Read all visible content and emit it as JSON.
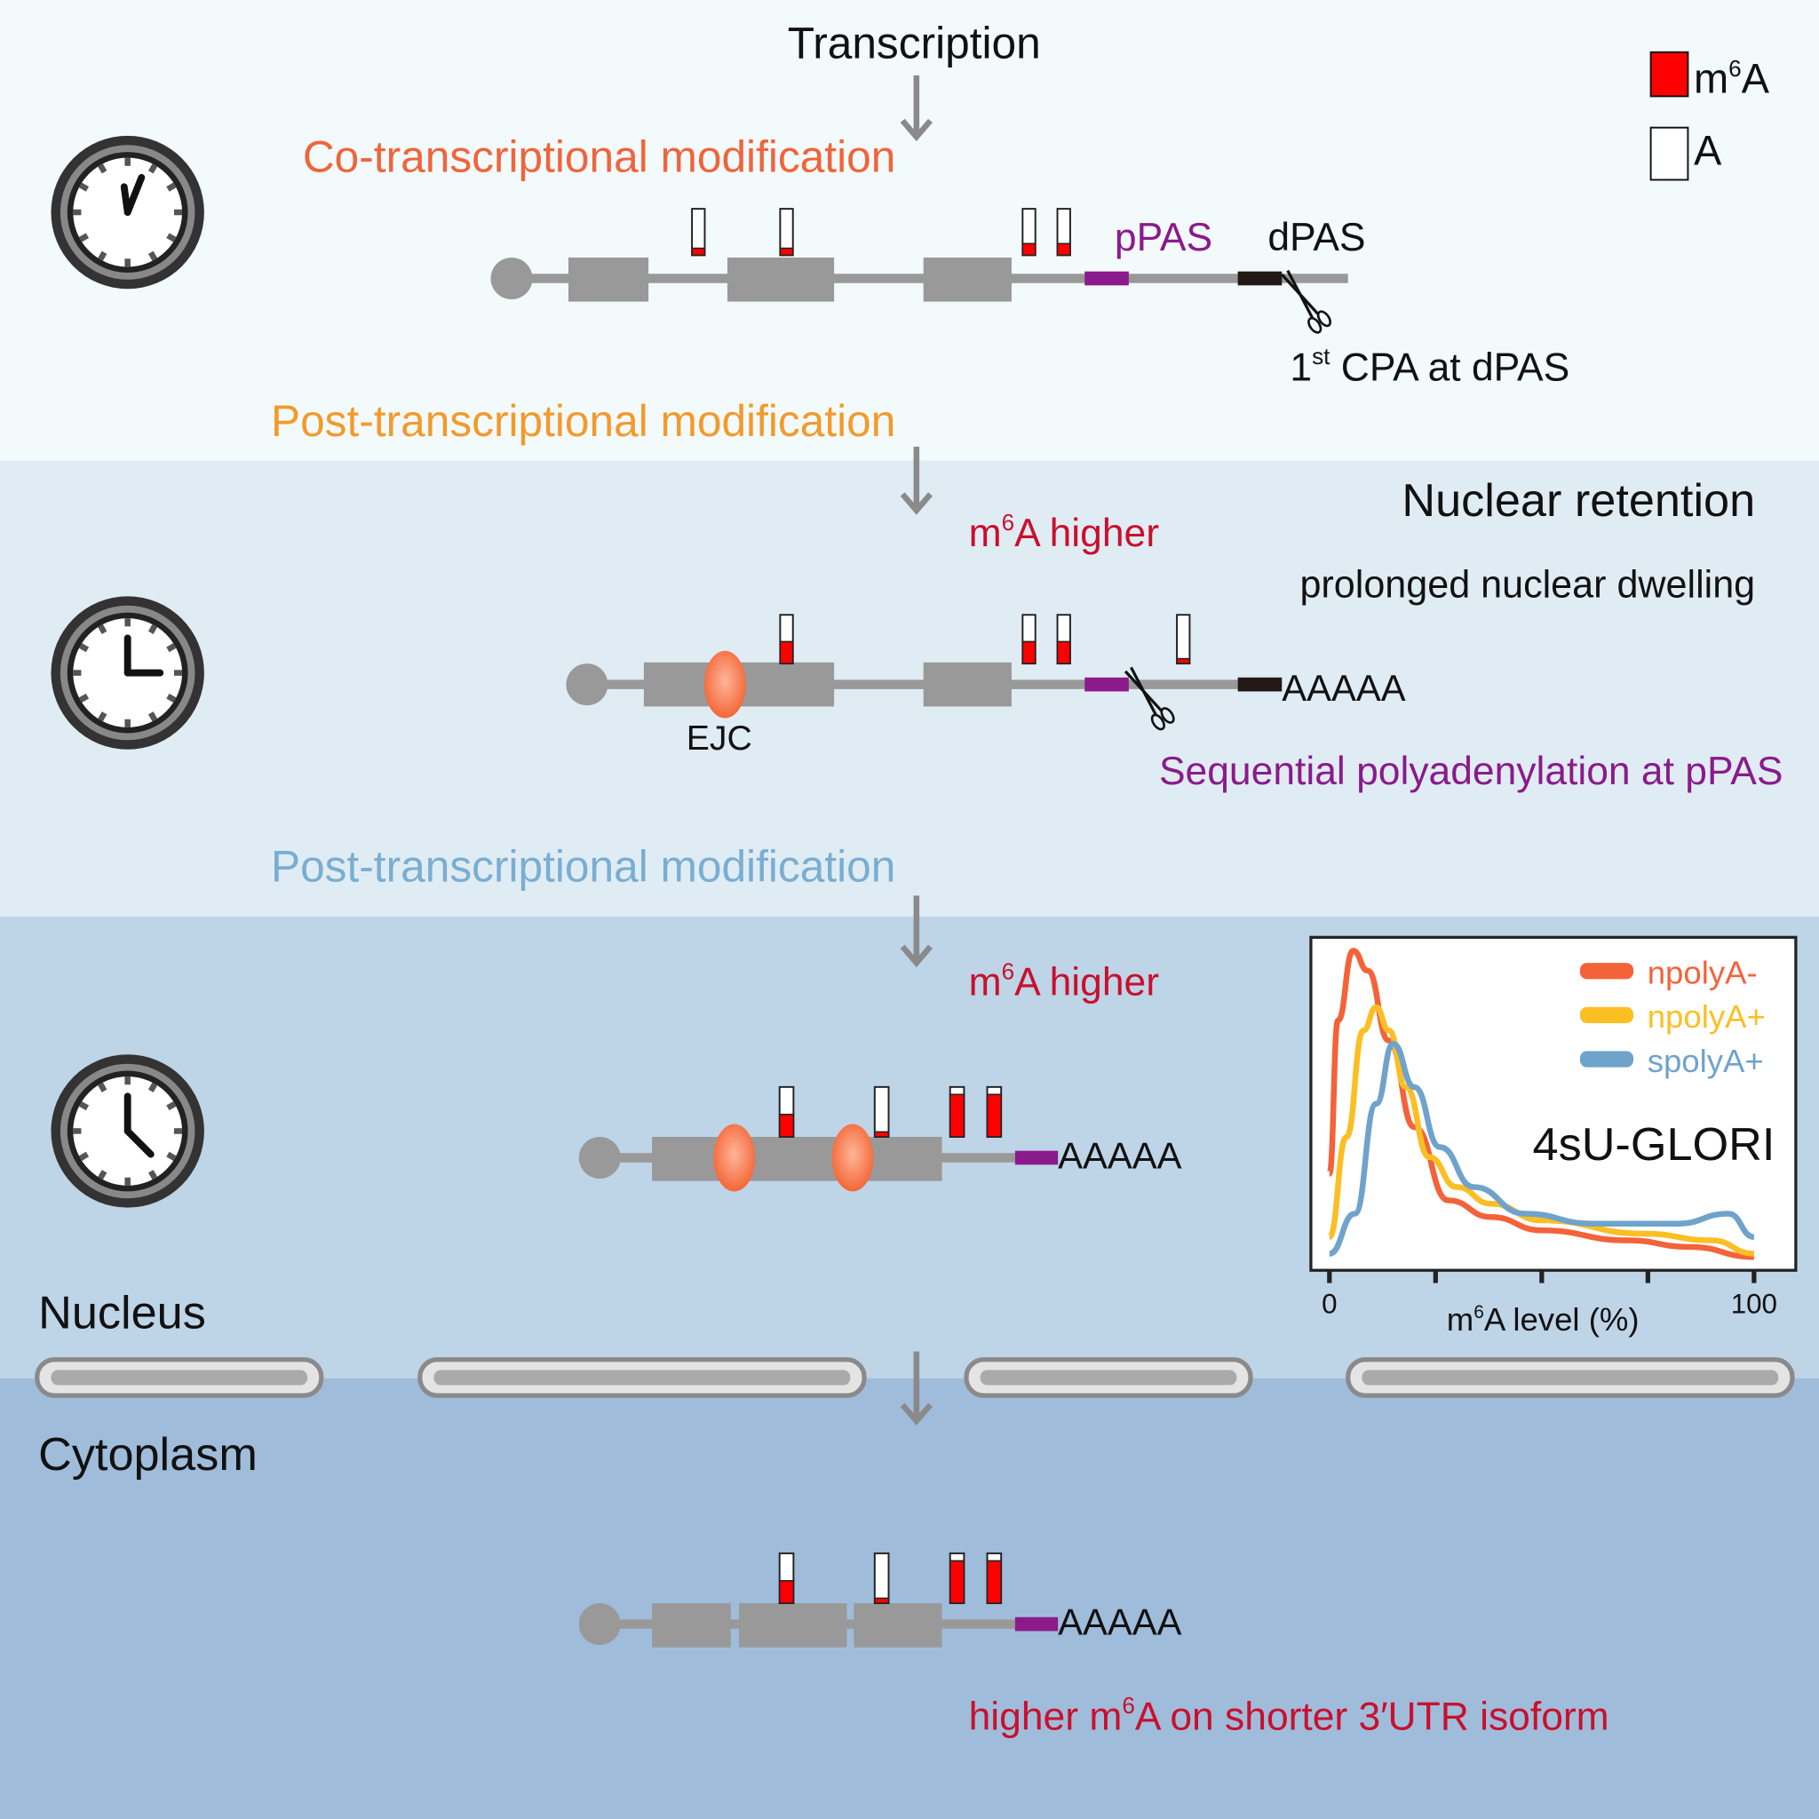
{
  "title": "Transcription",
  "legend": {
    "m6a_base": "m",
    "m6a_sup": "6",
    "m6a_tail": "A",
    "a_label": "A",
    "m6a_color": "#ff0000"
  },
  "stage1": {
    "heading": "Co-transcriptional modification",
    "ppas": "pPAS",
    "dpas": "dPAS",
    "cpa_pre": "1",
    "cpa_sup": "st",
    "cpa_post": " CPA at dPAS",
    "marker_levels": [
      0.15,
      0.15,
      0.25,
      0.25
    ]
  },
  "stage2": {
    "heading": "Post-transcriptional modification",
    "nuclear_retention": "Nuclear retention",
    "dwelling": "prolonged nuclear dwelling",
    "higher_pre": "m",
    "higher_sup": "6",
    "higher_post": "A higher",
    "ejc": "EJC",
    "polya": "AAAAA",
    "sequential": "Sequential polyadenylation at pPAS",
    "marker_levels": [
      0.45,
      0.45,
      0.45,
      0.1
    ]
  },
  "stage3": {
    "heading": "Post-transcriptional modification",
    "higher_pre": "m",
    "higher_sup": "6",
    "higher_post": "A higher",
    "polya": "AAAAA",
    "marker_levels": [
      0.45,
      0.1,
      0.85,
      0.85
    ]
  },
  "compartments": {
    "nucleus": "Nucleus",
    "cytoplasm": "Cytoplasm"
  },
  "stage4": {
    "polya": "AAAAA",
    "caption_pre": "higher m",
    "caption_sup": "6",
    "caption_post": "A on shorter 3′UTR isoform",
    "marker_levels": [
      0.45,
      0.1,
      0.85,
      0.85
    ]
  },
  "colors": {
    "co_transcriptional": "#f0643c",
    "post_transcriptional_1": "#f39a2c",
    "post_transcriptional_2": "#79aed2",
    "m6a_higher": "#c8102e",
    "ppas": "#8b1a8b",
    "band1": "#f3fafb",
    "band2": "#e0ecf4",
    "band3": "#bed4e7",
    "band4": "#a0bcdb"
  },
  "chart_data": {
    "type": "line",
    "title": "4sU-GLORI",
    "xlabel_pre": "m",
    "xlabel_sup": "6",
    "xlabel_post": "A level (%)",
    "xlim": [
      0,
      100
    ],
    "xticks": [
      0,
      25,
      50,
      75,
      100
    ],
    "xtick_labels": [
      "0",
      "100"
    ],
    "ylabel": "",
    "legend_position": "top-right",
    "series": [
      {
        "name": "npolyA-",
        "color": "#f4623a",
        "x": [
          0,
          2,
          5.6,
          9,
          14,
          20,
          28,
          38,
          50,
          70,
          85,
          100
        ],
        "y": [
          0.29,
          0.75,
          0.96,
          0.9,
          0.69,
          0.43,
          0.21,
          0.16,
          0.12,
          0.09,
          0.07,
          0.04
        ]
      },
      {
        "name": "npolyA+",
        "color": "#fbbf24",
        "x": [
          0,
          4,
          8,
          11,
          14,
          18,
          23.5,
          30,
          38,
          50,
          74,
          90,
          100
        ],
        "y": [
          0.1,
          0.4,
          0.72,
          0.79,
          0.72,
          0.55,
          0.34,
          0.25,
          0.2,
          0.15,
          0.11,
          0.09,
          0.05
        ]
      },
      {
        "name": "spolyA+",
        "color": "#6fa3cc",
        "x": [
          0,
          6,
          11,
          15,
          20,
          26,
          34,
          46,
          62,
          82,
          94,
          100
        ],
        "y": [
          0.05,
          0.17,
          0.5,
          0.68,
          0.55,
          0.37,
          0.25,
          0.17,
          0.14,
          0.14,
          0.17,
          0.1
        ]
      }
    ]
  }
}
